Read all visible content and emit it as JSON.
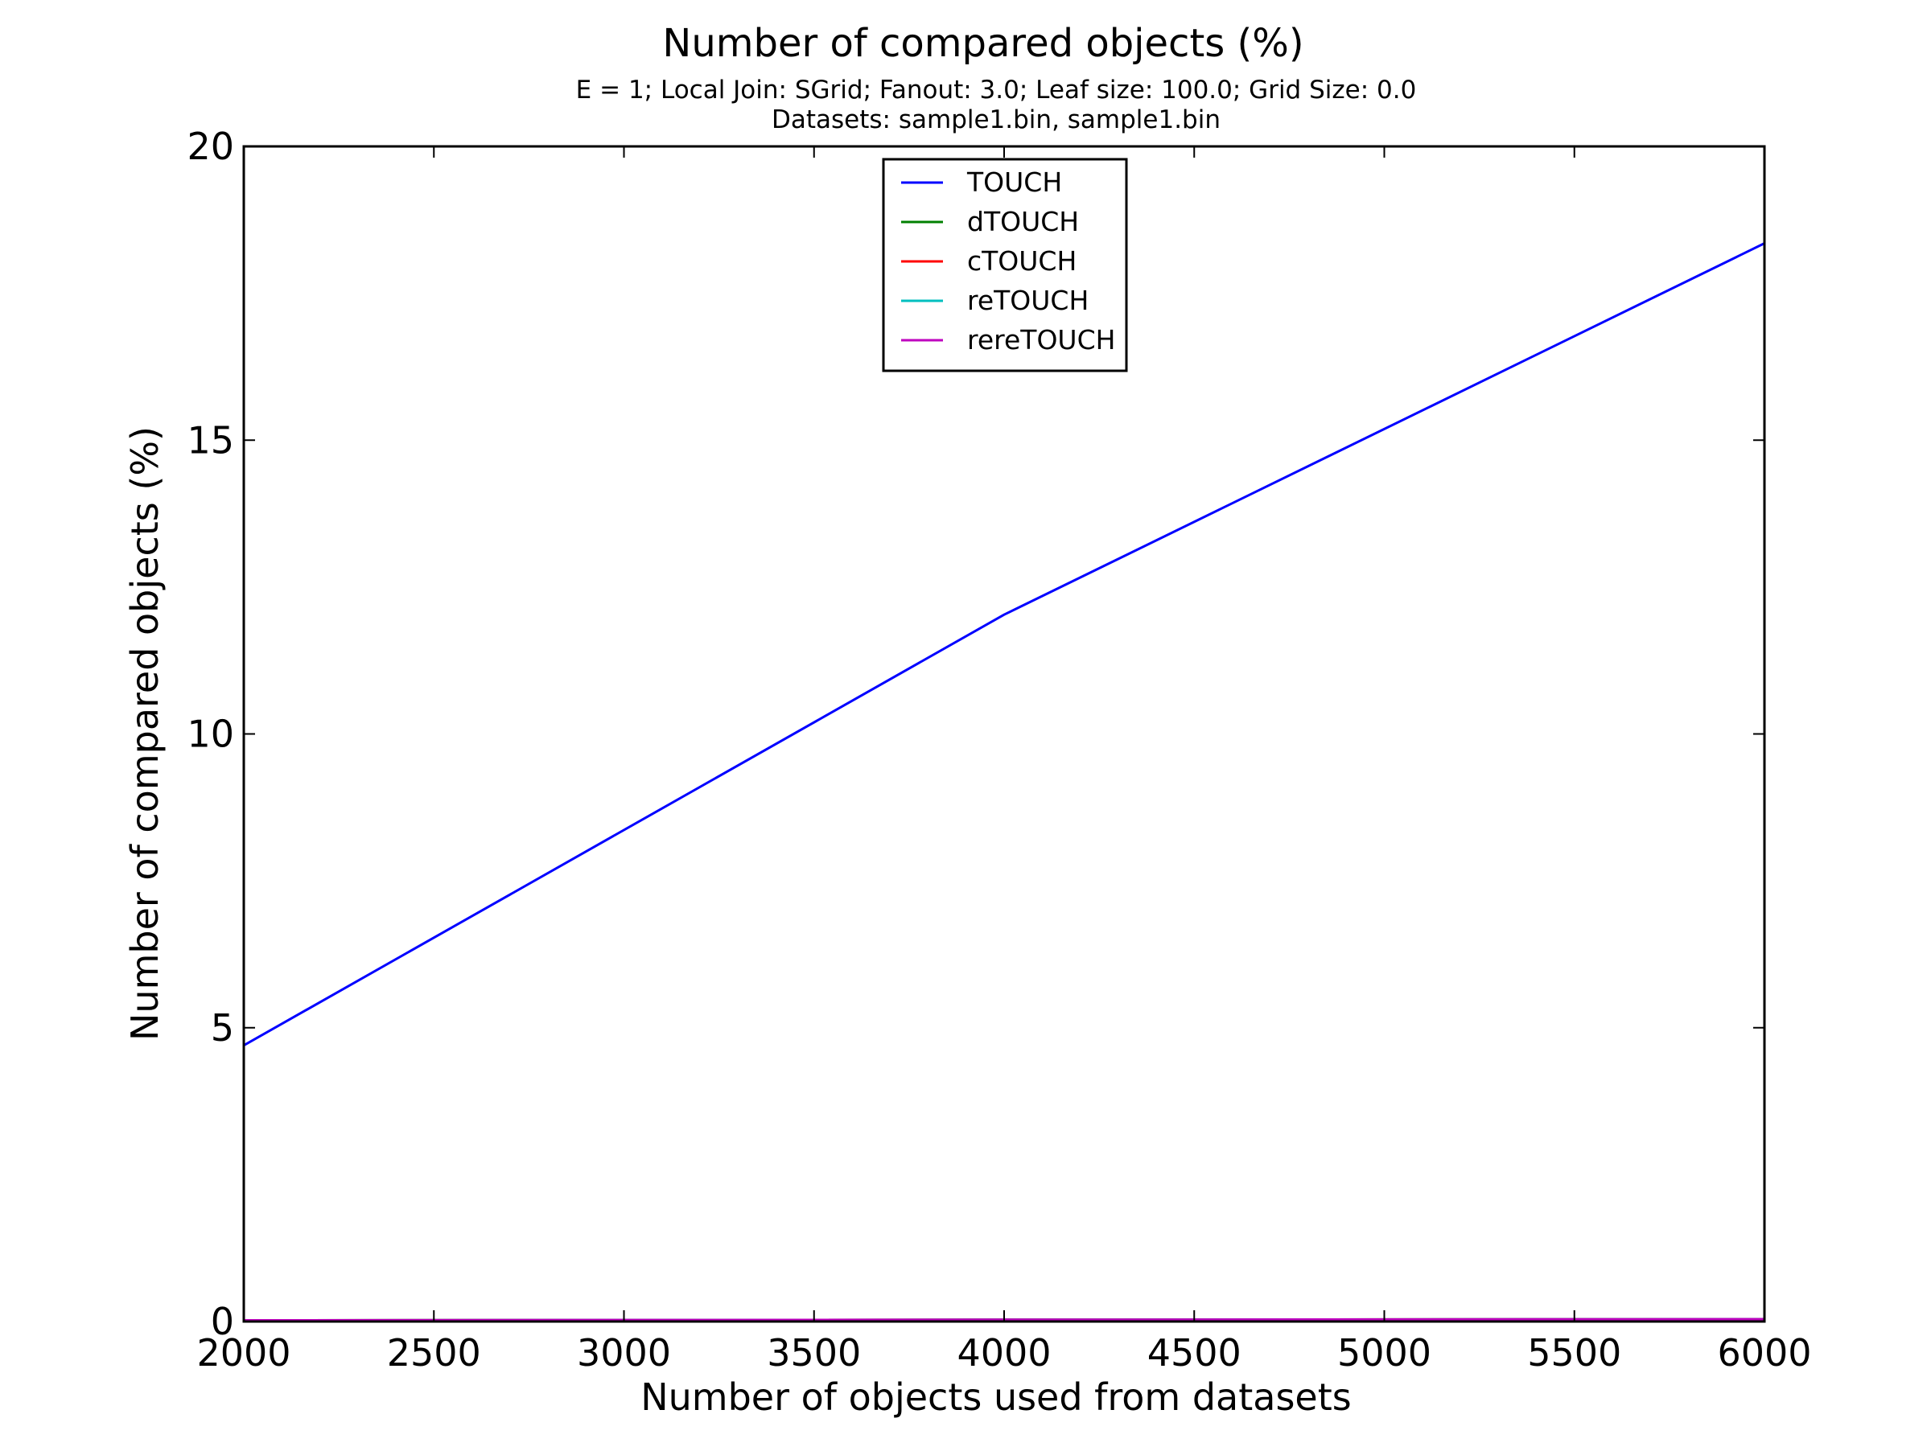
{
  "chart_data": {
    "type": "line",
    "title": "Number of compared objects (%)",
    "subtitle_lines": [
      "E = 1; Local Join: SGrid; Fanout: 3.0; Leaf size: 100.0; Grid Size: 0.0",
      "Datasets: sample1.bin, sample1.bin"
    ],
    "xlabel": "Number of objects used from datasets",
    "ylabel": "Number of compared objects (%)",
    "xlim": [
      2000,
      6000
    ],
    "ylim": [
      0,
      20
    ],
    "x_ticks": [
      2000,
      2500,
      3000,
      3500,
      4000,
      4500,
      5000,
      5500,
      6000
    ],
    "y_ticks": [
      0,
      5,
      10,
      15,
      20
    ],
    "grid": false,
    "legend_position": "top-center",
    "x": [
      2000,
      4000,
      6000
    ],
    "series": [
      {
        "name": "TOUCH",
        "color": "#0000ff",
        "values": [
          4.7,
          12.03,
          18.35
        ]
      },
      {
        "name": "dTOUCH",
        "color": "#008000",
        "values": [
          0.02,
          0.03,
          0.04
        ]
      },
      {
        "name": "cTOUCH",
        "color": "#ff0000",
        "values": [
          0.02,
          0.03,
          0.04
        ]
      },
      {
        "name": "reTOUCH",
        "color": "#00bfbf",
        "values": [
          0.02,
          0.03,
          0.04
        ]
      },
      {
        "name": "rereTOUCH",
        "color": "#bf00bf",
        "values": [
          0.02,
          0.03,
          0.04
        ]
      }
    ]
  }
}
